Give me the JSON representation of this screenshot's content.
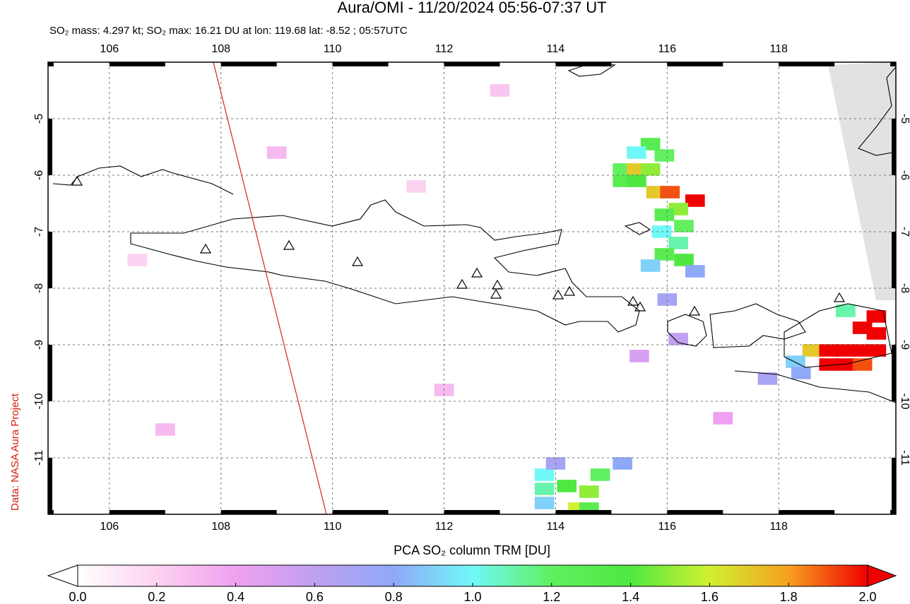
{
  "title": "Aura/OMI - 11/20/2024 05:56-07:37 UT",
  "subtitle": "SO₂ mass: 4.297 kt; SO₂ max: 16.21 DU at lon: 119.68 lat: -8.52 ; 05:57UTC",
  "credit": "Data: NASA Aura Project",
  "map": {
    "xlim": [
      104.9,
      120.1
    ],
    "ylim": [
      -12,
      -4
    ],
    "xticks": [
      106,
      108,
      110,
      112,
      114,
      116,
      118
    ],
    "yticks": [
      -5,
      -6,
      -7,
      -8,
      -9,
      -10,
      -11
    ],
    "cells": [
      {
        "lon": 115.2,
        "lat": -5.9,
        "value": 1.2
      },
      {
        "lon": 115.45,
        "lat": -5.9,
        "value": 1.7
      },
      {
        "lon": 115.7,
        "lat": -5.9,
        "value": 1.5
      },
      {
        "lon": 115.95,
        "lat": -5.65,
        "value": 1.2
      },
      {
        "lon": 115.7,
        "lat": -5.45,
        "value": 1.3
      },
      {
        "lon": 115.45,
        "lat": -5.6,
        "value": 1.0
      },
      {
        "lon": 115.2,
        "lat": -6.1,
        "value": 1.3
      },
      {
        "lon": 115.45,
        "lat": -6.1,
        "value": 1.4
      },
      {
        "lon": 115.8,
        "lat": -6.3,
        "value": 1.7
      },
      {
        "lon": 116.05,
        "lat": -6.3,
        "value": 1.9
      },
      {
        "lon": 116.5,
        "lat": -6.45,
        "value": 2.0
      },
      {
        "lon": 116.2,
        "lat": -6.6,
        "value": 1.5
      },
      {
        "lon": 115.95,
        "lat": -6.7,
        "value": 1.3
      },
      {
        "lon": 116.3,
        "lat": -6.9,
        "value": 1.2
      },
      {
        "lon": 115.9,
        "lat": -7.0,
        "value": 1.0
      },
      {
        "lon": 116.2,
        "lat": -7.2,
        "value": 1.1
      },
      {
        "lon": 115.95,
        "lat": -7.4,
        "value": 1.3
      },
      {
        "lon": 116.3,
        "lat": -7.5,
        "value": 1.4
      },
      {
        "lon": 115.7,
        "lat": -7.6,
        "value": 0.9
      },
      {
        "lon": 116.5,
        "lat": -7.7,
        "value": 0.8
      },
      {
        "lon": 116.0,
        "lat": -8.2,
        "value": 0.7
      },
      {
        "lon": 118.6,
        "lat": -9.1,
        "value": 1.7
      },
      {
        "lon": 118.9,
        "lat": -9.1,
        "value": 2.0
      },
      {
        "lon": 119.2,
        "lat": -9.1,
        "value": 2.0
      },
      {
        "lon": 119.5,
        "lat": -9.1,
        "value": 2.0
      },
      {
        "lon": 119.75,
        "lat": -9.1,
        "value": 2.0
      },
      {
        "lon": 118.9,
        "lat": -9.35,
        "value": 2.0
      },
      {
        "lon": 119.2,
        "lat": -9.35,
        "value": 2.0
      },
      {
        "lon": 119.5,
        "lat": -9.35,
        "value": 1.9
      },
      {
        "lon": 119.5,
        "lat": -8.7,
        "value": 2.0
      },
      {
        "lon": 119.75,
        "lat": -8.5,
        "value": 2.0
      },
      {
        "lon": 119.75,
        "lat": -8.8,
        "value": 2.0
      },
      {
        "lon": 119.2,
        "lat": -8.4,
        "value": 1.1
      },
      {
        "lon": 118.3,
        "lat": -9.3,
        "value": 0.9
      },
      {
        "lon": 118.4,
        "lat": -9.5,
        "value": 0.8
      },
      {
        "lon": 117.8,
        "lat": -9.6,
        "value": 0.7
      },
      {
        "lon": 113.8,
        "lat": -11.3,
        "value": 1.0
      },
      {
        "lon": 113.8,
        "lat": -11.8,
        "value": 0.9
      },
      {
        "lon": 114.2,
        "lat": -11.5,
        "value": 1.4
      },
      {
        "lon": 114.6,
        "lat": -11.6,
        "value": 1.5
      },
      {
        "lon": 114.4,
        "lat": -11.9,
        "value": 1.6
      },
      {
        "lon": 114.8,
        "lat": -11.3,
        "value": 1.2
      },
      {
        "lon": 115.2,
        "lat": -11.1,
        "value": 0.8
      },
      {
        "lon": 114.0,
        "lat": -11.1,
        "value": 0.7
      },
      {
        "lon": 113.8,
        "lat": -11.55,
        "value": 1.1
      },
      {
        "lon": 114.6,
        "lat": -11.9,
        "value": 1.3
      },
      {
        "lon": 106.5,
        "lat": -7.5,
        "value": 0.2
      },
      {
        "lon": 109,
        "lat": -5.6,
        "value": 0.3
      },
      {
        "lon": 111.5,
        "lat": -6.2,
        "value": 0.2
      },
      {
        "lon": 112,
        "lat": -9.8,
        "value": 0.3
      },
      {
        "lon": 107,
        "lat": -10.5,
        "value": 0.3
      },
      {
        "lon": 113,
        "lat": -4.5,
        "value": 0.25
      },
      {
        "lon": 117,
        "lat": -10.3,
        "value": 0.4
      },
      {
        "lon": 116.2,
        "lat": -8.9,
        "value": 0.6
      },
      {
        "lon": 115.5,
        "lat": -9.2,
        "value": 0.5
      }
    ]
  },
  "colorbar": {
    "label": "PCA SO₂ column TRM [DU]",
    "lim": [
      0,
      2
    ],
    "colors": [
      "#ffffff",
      "#fcd2f0",
      "#f0a0f0",
      "#c0a0f0",
      "#90a8f8",
      "#70f8f8",
      "#60f060",
      "#50e840",
      "#d0f030",
      "#f8a020",
      "#f00000"
    ],
    "ticks": [
      {
        "value": 0,
        "label": "0.0"
      },
      {
        "value": 0.2,
        "label": "0.2"
      },
      {
        "value": 0.4,
        "label": "0.4"
      },
      {
        "value": 0.6,
        "label": "0.6"
      },
      {
        "value": 0.8,
        "label": "0.8"
      },
      {
        "value": 1,
        "label": "1.0"
      },
      {
        "value": 1.2,
        "label": "1.2"
      },
      {
        "value": 1.4,
        "label": "1.4"
      },
      {
        "value": 1.6,
        "label": "1.6"
      },
      {
        "value": 1.8,
        "label": "1.8"
      },
      {
        "value": 2,
        "label": "2.0"
      }
    ]
  }
}
